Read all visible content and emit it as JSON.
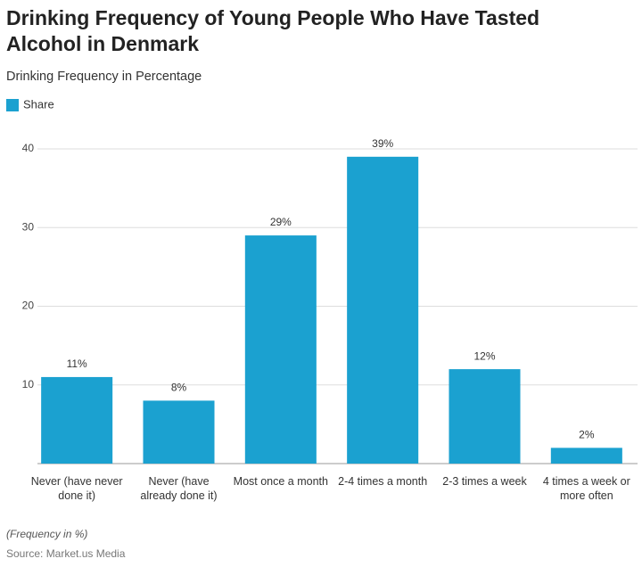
{
  "chart_data": {
    "type": "bar",
    "title": "Drinking Frequency of Young People Who Have Tasted Alcohol in Denmark",
    "subtitle": "Drinking Frequency in Percentage",
    "categories": [
      "Never (have never done it)",
      "Never (have already done it)",
      "Most once a month",
      "2-4 times a month",
      "2-3 times a week",
      "4 times a week or more often"
    ],
    "series": [
      {
        "name": "Share",
        "color": "#1ba1d0",
        "values": [
          11,
          8,
          29,
          39,
          12,
          2
        ],
        "value_labels": [
          "11%",
          "8%",
          "29%",
          "39%",
          "12%",
          "2%"
        ]
      }
    ],
    "ylim": [
      0,
      42
    ],
    "yticks": [
      10,
      20,
      30,
      40
    ],
    "grid": true,
    "footnote": "(Frequency in %)",
    "source": "Source: Market.us Media"
  }
}
